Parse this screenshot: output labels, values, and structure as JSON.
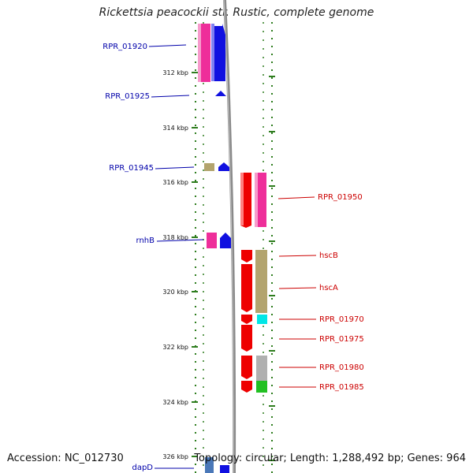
{
  "title": "Rickettsia peacockii str. Rustic, complete genome",
  "footer": {
    "accession": "Accession: NC_012730",
    "summary": "Topology: circular; Length: 1,288,492 bp; Genes: 964"
  },
  "ticks": [
    {
      "label": "312 kbp"
    },
    {
      "label": "314 kbp"
    },
    {
      "label": "316 kbp"
    },
    {
      "label": "318 kbp"
    },
    {
      "label": "320 kbp"
    },
    {
      "label": "322 kbp"
    },
    {
      "label": "324 kbp"
    },
    {
      "label": "326 kbp"
    }
  ],
  "left_labels": [
    "RPR_01920",
    "RPR_01925",
    "RPR_01945",
    "rnhB",
    "dapD"
  ],
  "right_labels": [
    "RPR_01950",
    "hscB",
    "hscA",
    "RPR_01970",
    "RPR_01975",
    "RPR_01980",
    "RPR_01985"
  ],
  "colors": {
    "label_left": "#0000aa",
    "label_right": "#cc0000",
    "tick": "#2e7d1e",
    "backbone": "#888888",
    "cds_forward": "#1010e0",
    "cds_reverse": "#ee0000",
    "magenta": "#ee2e9a",
    "khaki": "#b3a46e",
    "cyan": "#00e6e6",
    "gray": "#b0b0b0",
    "green": "#22c022",
    "steel": "#4a78b8"
  }
}
